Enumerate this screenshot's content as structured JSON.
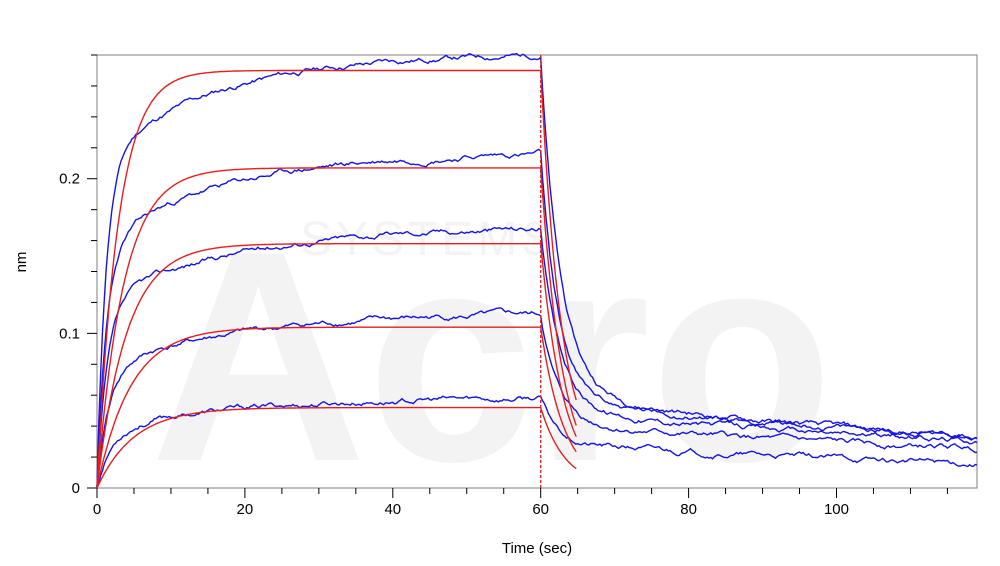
{
  "chart_data": {
    "type": "line",
    "title": "",
    "xlabel": "Time (sec)",
    "ylabel": "nm",
    "xlim": [
      0,
      119
    ],
    "ylim": [
      0,
      0.28
    ],
    "x_ticks": [
      0,
      20,
      40,
      60,
      80,
      100
    ],
    "y_ticks": [
      0,
      0.1,
      0.2
    ],
    "x_tick_labels": [
      "0",
      "20",
      "40",
      "60",
      "80",
      "100"
    ],
    "y_tick_labels": [
      "0",
      "0.1",
      "0.2"
    ],
    "dissociation_start": 60,
    "grid": false,
    "legend": "none",
    "series_colors": {
      "measured": "#1414e6",
      "fit": "#e61e1e",
      "marker": "#e61e1e",
      "frame": "#000000"
    },
    "measured": [
      {
        "amplitude": 0.23,
        "tau1": 1.2,
        "w1": 0.75,
        "tau2": 16,
        "plateau": 0.28,
        "drift": 0.00012,
        "dissoc": [
          {
            "frac": 0.82,
            "tau": 2.6
          }
        ],
        "floor": 0.062,
        "tail_tau": 80,
        "tail_end": 0.021,
        "seed": 11
      },
      {
        "amplitude": 0.16,
        "tau1": 1.3,
        "w1": 0.72,
        "tau2": 17,
        "plateau": 0.216,
        "drift": 0.00018,
        "dissoc": [
          {
            "frac": 0.76,
            "tau": 2.3
          }
        ],
        "floor": 0.058,
        "tail_tau": 80,
        "tail_end": 0.024,
        "seed": 23
      },
      {
        "amplitude": 0.12,
        "tau1": 1.4,
        "w1": 0.7,
        "tau2": 18,
        "plateau": 0.168,
        "drift": 0.00014,
        "dissoc": [
          {
            "frac": 0.7,
            "tau": 2.4
          }
        ],
        "floor": 0.052,
        "tail_tau": 80,
        "tail_end": 0.022,
        "seed": 37
      },
      {
        "amplitude": 0.075,
        "tau1": 1.6,
        "w1": 0.68,
        "tau2": 19,
        "plateau": 0.112,
        "drift": 0.0001,
        "dissoc": [
          {
            "frac": 0.62,
            "tau": 2.3
          }
        ],
        "floor": 0.043,
        "tail_tau": 80,
        "tail_end": 0.018,
        "seed": 41
      },
      {
        "amplitude": 0.035,
        "tau1": 2.0,
        "w1": 0.65,
        "tau2": 20,
        "plateau": 0.058,
        "drift": 8e-05,
        "dissoc": [
          {
            "frac": 0.55,
            "tau": 2.2
          }
        ],
        "floor": 0.03,
        "tail_tau": 80,
        "tail_end": 0.01,
        "seed": 53
      }
    ],
    "fits": [
      {
        "plateau": 0.27,
        "kobs": 0.35,
        "koff_tau": 2.8
      },
      {
        "plateau": 0.207,
        "kobs": 0.28,
        "koff_tau": 2.8
      },
      {
        "plateau": 0.158,
        "kobs": 0.25,
        "koff_tau": 2.8
      },
      {
        "plateau": 0.104,
        "kobs": 0.22,
        "koff_tau": 2.8
      },
      {
        "plateau": 0.052,
        "kobs": 0.2,
        "koff_tau": 2.8
      }
    ],
    "fit_end": 65
  }
}
